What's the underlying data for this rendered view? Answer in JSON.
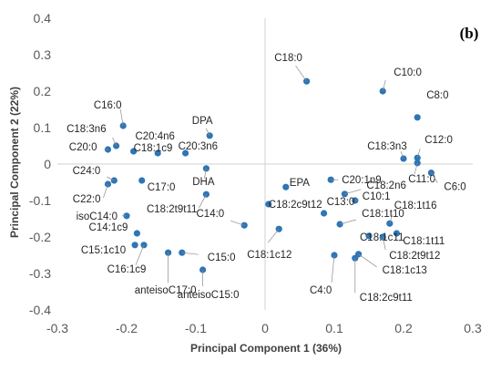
{
  "panel_label": "(b)",
  "chart_data": {
    "type": "scatter",
    "title": "",
    "xlabel": "Principal Component 1 (36%)",
    "ylabel": "Principal Component 2 (22%)",
    "xlim": [
      -0.3,
      0.3
    ],
    "ylim": [
      -0.4,
      0.4
    ],
    "xticks": [
      -0.3,
      -0.2,
      -0.1,
      0,
      0.1,
      0.2,
      0.3
    ],
    "yticks": [
      -0.4,
      -0.3,
      -0.2,
      -0.1,
      0,
      0.1,
      0.2,
      0.3,
      0.4
    ],
    "xtick_labels": [
      "-0.3",
      "-0.2",
      "-0.1",
      "0",
      "0.1",
      "0.2",
      "0.3"
    ],
    "ytick_labels": [
      "-0.4",
      "-0.3",
      "-0.2",
      "-0.1",
      "0",
      "0.1",
      "0.2",
      "0.3",
      "0.4"
    ],
    "grid": false,
    "zero_lines": true,
    "marker_color": "#2E75B6",
    "points": [
      {
        "label": "C18:0",
        "x": 0.06,
        "y": 0.227
      },
      {
        "label": "C10:0",
        "x": 0.17,
        "y": 0.2
      },
      {
        "label": "C8:0",
        "x": 0.22,
        "y": 0.128
      },
      {
        "label": "C16:0",
        "x": -0.205,
        "y": 0.105
      },
      {
        "label": "C18:3n6",
        "x": -0.215,
        "y": 0.05
      },
      {
        "label": "C20:0",
        "x": -0.227,
        "y": 0.04
      },
      {
        "label": "C18:1c9",
        "x": -0.19,
        "y": 0.035
      },
      {
        "label": "C20:4n6",
        "x": -0.155,
        "y": 0.03
      },
      {
        "label": "C20:3n6",
        "x": -0.115,
        "y": 0.03
      },
      {
        "label": "DPA",
        "x": -0.08,
        "y": 0.078
      },
      {
        "label": "DHA",
        "x": -0.085,
        "y": -0.012
      },
      {
        "label": "C18:2t9t11",
        "x": -0.085,
        "y": -0.083
      },
      {
        "label": "C24:0",
        "x": -0.218,
        "y": -0.045
      },
      {
        "label": "C22:0",
        "x": -0.227,
        "y": -0.055
      },
      {
        "label": "C17:0",
        "x": -0.178,
        "y": -0.045
      },
      {
        "label": "isoC14:0",
        "x": -0.2,
        "y": -0.142
      },
      {
        "label": "C14:1c9",
        "x": -0.185,
        "y": -0.19
      },
      {
        "label": "C15:1c10",
        "x": -0.188,
        "y": -0.222
      },
      {
        "label": "C16:1c9",
        "x": -0.175,
        "y": -0.222
      },
      {
        "label": "anteisoC17:0",
        "x": -0.14,
        "y": -0.243
      },
      {
        "label": "C15:0",
        "x": -0.12,
        "y": -0.243
      },
      {
        "label": "anteisoC15:0",
        "x": -0.09,
        "y": -0.29
      },
      {
        "label": "C14:0",
        "x": -0.03,
        "y": -0.168
      },
      {
        "label": "C18:3n3",
        "x": 0.2,
        "y": 0.015
      },
      {
        "label": "C12:0",
        "x": 0.22,
        "y": 0.017
      },
      {
        "label": "C11:0",
        "x": 0.22,
        "y": 0.003
      },
      {
        "label": "C6:0",
        "x": 0.24,
        "y": -0.024
      },
      {
        "label": "C20:1n9",
        "x": 0.095,
        "y": -0.043
      },
      {
        "label": "EPA",
        "x": 0.03,
        "y": -0.063
      },
      {
        "label": "C18:2n6",
        "x": 0.115,
        "y": -0.082
      },
      {
        "label": "C18:2c9t12",
        "x": 0.005,
        "y": -0.11
      },
      {
        "label": "C10:1",
        "x": 0.13,
        "y": -0.1
      },
      {
        "label": "C13:0",
        "x": 0.085,
        "y": -0.135
      },
      {
        "label": "C18:1t10",
        "x": 0.108,
        "y": -0.165
      },
      {
        "label": "C18:1c12",
        "x": 0.02,
        "y": -0.178
      },
      {
        "label": "C18:1t16",
        "x": 0.18,
        "y": -0.163
      },
      {
        "label": "C18:1t11",
        "x": 0.19,
        "y": -0.19
      },
      {
        "label": "C18:1c11",
        "x": 0.15,
        "y": -0.197
      },
      {
        "label": "C18:2t9t12",
        "x": 0.17,
        "y": -0.2
      },
      {
        "label": "C4:0",
        "x": 0.1,
        "y": -0.25
      },
      {
        "label": "C18:1c13",
        "x": 0.135,
        "y": -0.247
      },
      {
        "label": "C18:2c9t11",
        "x": 0.13,
        "y": -0.258
      }
    ]
  }
}
